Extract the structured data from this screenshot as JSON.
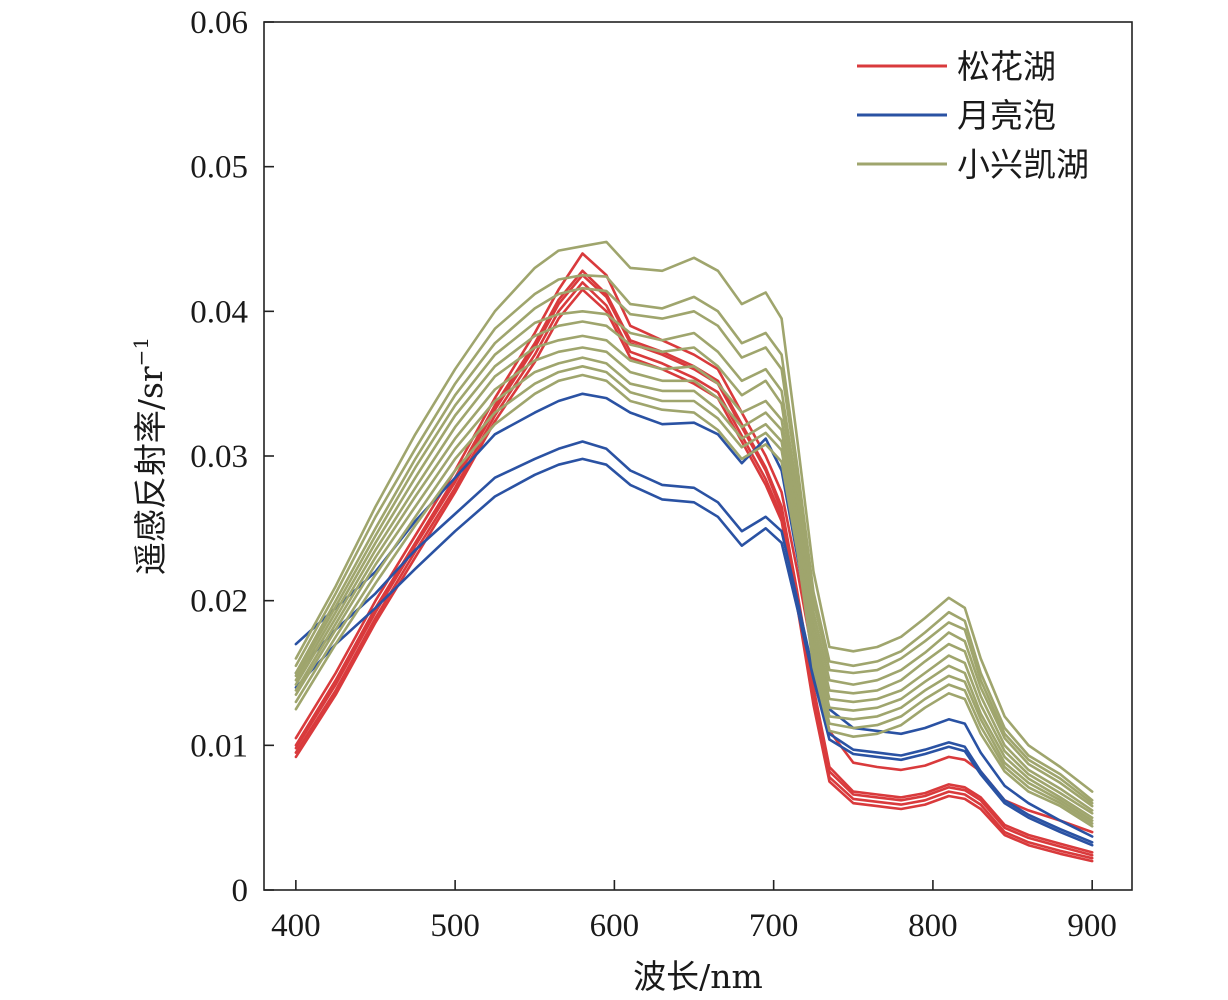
{
  "chart_data": {
    "type": "line",
    "xlabel": "波长/nm",
    "ylabel": "遥感反射率/sr",
    "ylabel_superscript": "−1",
    "xlim": [
      380,
      925
    ],
    "ylim": [
      0,
      0.06
    ],
    "xticks": [
      "400",
      "500",
      "600",
      "700",
      "800",
      "900"
    ],
    "yticks": [
      "0",
      "0.01",
      "0.02",
      "0.03",
      "0.04",
      "0.05",
      "0.06"
    ],
    "grid": false,
    "legend_position": "top-right",
    "x": [
      400,
      425,
      450,
      475,
      500,
      525,
      550,
      565,
      580,
      595,
      610,
      630,
      650,
      665,
      680,
      695,
      705,
      715,
      725,
      735,
      750,
      765,
      780,
      795,
      810,
      820,
      830,
      845,
      860,
      880,
      900
    ],
    "groups": [
      {
        "name": "松花湖",
        "color": "#d93a3c",
        "series": [
          {
            "values": [
              0.0105,
              0.015,
              0.02,
              0.0245,
              0.029,
              0.034,
              0.0385,
              0.0415,
              0.044,
              0.0425,
              0.039,
              0.038,
              0.037,
              0.036,
              0.033,
              0.03,
              0.0275,
              0.022,
              0.016,
              0.011,
              0.0088,
              0.0085,
              0.0083,
              0.0086,
              0.0092,
              0.009,
              0.0082,
              0.0062,
              0.0055,
              0.0048,
              0.004
            ]
          },
          {
            "values": [
              0.01,
              0.0145,
              0.0195,
              0.024,
              0.0285,
              0.0335,
              0.0378,
              0.0408,
              0.0428,
              0.0412,
              0.038,
              0.0372,
              0.0362,
              0.0352,
              0.0322,
              0.0292,
              0.0265,
              0.0205,
              0.014,
              0.0085,
              0.0068,
              0.0066,
              0.0064,
              0.0067,
              0.0073,
              0.0071,
              0.0064,
              0.0045,
              0.0038,
              0.0032,
              0.0026
            ]
          },
          {
            "values": [
              0.0098,
              0.0142,
              0.0192,
              0.0238,
              0.0282,
              0.0332,
              0.0375,
              0.0405,
              0.0425,
              0.041,
              0.0378,
              0.037,
              0.036,
              0.035,
              0.032,
              0.029,
              0.0262,
              0.0202,
              0.0136,
              0.0082,
              0.0066,
              0.0064,
              0.0062,
              0.0065,
              0.0071,
              0.0069,
              0.0062,
              0.0043,
              0.0036,
              0.003,
              0.0024
            ]
          },
          {
            "values": [
              0.0095,
              0.0138,
              0.0188,
              0.0234,
              0.0278,
              0.0328,
              0.037,
              0.04,
              0.042,
              0.0404,
              0.0372,
              0.0364,
              0.0354,
              0.0344,
              0.0314,
              0.0284,
              0.0258,
              0.0198,
              0.0132,
              0.0078,
              0.0063,
              0.0061,
              0.0059,
              0.0062,
              0.0068,
              0.0066,
              0.0059,
              0.004,
              0.0033,
              0.0027,
              0.0022
            ]
          },
          {
            "values": [
              0.0092,
              0.0135,
              0.0185,
              0.023,
              0.0275,
              0.0324,
              0.0365,
              0.0395,
              0.0415,
              0.04,
              0.0368,
              0.036,
              0.035,
              0.034,
              0.031,
              0.028,
              0.0255,
              0.0195,
              0.0128,
              0.0075,
              0.006,
              0.0058,
              0.0056,
              0.0059,
              0.0065,
              0.0063,
              0.0056,
              0.0038,
              0.0031,
              0.0025,
              0.002
            ]
          }
        ]
      },
      {
        "name": "月亮泡",
        "color": "#2a52a3",
        "series": [
          {
            "values": [
              0.017,
              0.0195,
              0.022,
              0.0255,
              0.0285,
              0.0315,
              0.033,
              0.0338,
              0.0343,
              0.034,
              0.033,
              0.0322,
              0.0323,
              0.0315,
              0.0295,
              0.0312,
              0.029,
              0.023,
              0.017,
              0.0125,
              0.0112,
              0.011,
              0.0108,
              0.0112,
              0.0118,
              0.0115,
              0.0095,
              0.0072,
              0.006,
              0.0048,
              0.0037
            ]
          },
          {
            "values": [
              0.015,
              0.018,
              0.0205,
              0.0235,
              0.026,
              0.0285,
              0.0298,
              0.0305,
              0.031,
              0.0305,
              0.029,
              0.028,
              0.0278,
              0.0268,
              0.0248,
              0.0258,
              0.0248,
              0.02,
              0.015,
              0.0108,
              0.0097,
              0.0095,
              0.0093,
              0.0097,
              0.0102,
              0.0099,
              0.0082,
              0.0062,
              0.0052,
              0.0042,
              0.0033
            ]
          },
          {
            "values": [
              0.014,
              0.017,
              0.0195,
              0.0222,
              0.0248,
              0.0272,
              0.0287,
              0.0294,
              0.0298,
              0.0294,
              0.028,
              0.027,
              0.0268,
              0.0258,
              0.0238,
              0.025,
              0.024,
              0.0194,
              0.0146,
              0.0104,
              0.0094,
              0.0092,
              0.009,
              0.0094,
              0.0099,
              0.0096,
              0.008,
              0.006,
              0.005,
              0.004,
              0.0031
            ]
          }
        ]
      },
      {
        "name": "小兴凯湖",
        "color": "#9fa56d",
        "series": [
          {
            "values": [
              0.016,
              0.021,
              0.0265,
              0.0315,
              0.036,
              0.04,
              0.043,
              0.0442,
              0.0445,
              0.0448,
              0.043,
              0.0428,
              0.0437,
              0.0428,
              0.0405,
              0.0413,
              0.0395,
              0.031,
              0.022,
              0.0168,
              0.0165,
              0.0168,
              0.0175,
              0.0188,
              0.0202,
              0.0195,
              0.016,
              0.012,
              0.01,
              0.0085,
              0.0068
            ]
          },
          {
            "values": [
              0.0155,
              0.0205,
              0.0258,
              0.0305,
              0.035,
              0.0388,
              0.0412,
              0.0422,
              0.0425,
              0.0424,
              0.0405,
              0.0402,
              0.041,
              0.04,
              0.0378,
              0.0385,
              0.037,
              0.0292,
              0.0206,
              0.0158,
              0.0155,
              0.0158,
              0.0165,
              0.0178,
              0.0192,
              0.0186,
              0.015,
              0.0112,
              0.0093,
              0.008,
              0.0062
            ]
          },
          {
            "values": [
              0.015,
              0.02,
              0.025,
              0.0298,
              0.0342,
              0.0378,
              0.0402,
              0.0412,
              0.0416,
              0.0414,
              0.0398,
              0.0395,
              0.04,
              0.039,
              0.0368,
              0.0375,
              0.036,
              0.0285,
              0.02,
              0.0152,
              0.015,
              0.0152,
              0.016,
              0.0172,
              0.0185,
              0.018,
              0.0145,
              0.0108,
              0.009,
              0.0077,
              0.006
            ]
          },
          {
            "values": [
              0.0148,
              0.0196,
              0.0245,
              0.0292,
              0.0335,
              0.037,
              0.0392,
              0.0398,
              0.04,
              0.0398,
              0.0385,
              0.038,
              0.0385,
              0.0372,
              0.0352,
              0.036,
              0.0345,
              0.0275,
              0.0192,
              0.0145,
              0.0142,
              0.0145,
              0.0152,
              0.0164,
              0.0178,
              0.0172,
              0.014,
              0.0105,
              0.0087,
              0.0074,
              0.0058
            ]
          },
          {
            "values": [
              0.0145,
              0.0192,
              0.024,
              0.0285,
              0.0328,
              0.0362,
              0.0383,
              0.039,
              0.0393,
              0.039,
              0.0377,
              0.0372,
              0.0375,
              0.0362,
              0.0342,
              0.0352,
              0.0336,
              0.0266,
              0.0185,
              0.0138,
              0.0136,
              0.0138,
              0.0145,
              0.0158,
              0.017,
              0.0165,
              0.0134,
              0.01,
              0.0083,
              0.007,
              0.0055
            ]
          },
          {
            "values": [
              0.0142,
              0.0188,
              0.0235,
              0.0278,
              0.032,
              0.0355,
              0.0375,
              0.038,
              0.0383,
              0.038,
              0.0366,
              0.036,
              0.0362,
              0.035,
              0.033,
              0.0338,
              0.0325,
              0.0258,
              0.0178,
              0.0132,
              0.013,
              0.0132,
              0.0138,
              0.015,
              0.0162,
              0.0157,
              0.0128,
              0.0096,
              0.008,
              0.0067,
              0.0053
            ]
          },
          {
            "values": [
              0.0138,
              0.0184,
              0.023,
              0.0272,
              0.0312,
              0.0346,
              0.0366,
              0.0372,
              0.0375,
              0.0372,
              0.0358,
              0.0352,
              0.0352,
              0.034,
              0.032,
              0.033,
              0.0318,
              0.0252,
              0.0172,
              0.0126,
              0.0124,
              0.0126,
              0.0132,
              0.0144,
              0.0155,
              0.015,
              0.0122,
              0.0092,
              0.0077,
              0.0064,
              0.005
            ]
          },
          {
            "values": [
              0.0135,
              0.018,
              0.0225,
              0.0265,
              0.0305,
              0.0338,
              0.0358,
              0.0364,
              0.0368,
              0.0364,
              0.035,
              0.0345,
              0.0345,
              0.0332,
              0.0312,
              0.0322,
              0.031,
              0.0246,
              0.0166,
              0.012,
              0.0118,
              0.012,
              0.0126,
              0.0138,
              0.0148,
              0.0144,
              0.0118,
              0.0088,
              0.0074,
              0.0062,
              0.0048
            ]
          },
          {
            "values": [
              0.013,
              0.0175,
              0.0218,
              0.0258,
              0.0298,
              0.033,
              0.035,
              0.0358,
              0.0362,
              0.0358,
              0.0344,
              0.0338,
              0.0338,
              0.0326,
              0.0306,
              0.0316,
              0.0304,
              0.024,
              0.016,
              0.0115,
              0.0112,
              0.0114,
              0.012,
              0.0132,
              0.0142,
              0.0138,
              0.0113,
              0.0085,
              0.0071,
              0.006,
              0.0046
            ]
          },
          {
            "values": [
              0.0125,
              0.017,
              0.0212,
              0.0252,
              0.029,
              0.0322,
              0.0343,
              0.0352,
              0.0356,
              0.0352,
              0.0338,
              0.0332,
              0.033,
              0.0318,
              0.0298,
              0.0308,
              0.0296,
              0.0234,
              0.0154,
              0.011,
              0.0106,
              0.0108,
              0.0114,
              0.0126,
              0.0136,
              0.0132,
              0.0108,
              0.0082,
              0.0068,
              0.0058,
              0.0044
            ]
          }
        ]
      }
    ]
  }
}
